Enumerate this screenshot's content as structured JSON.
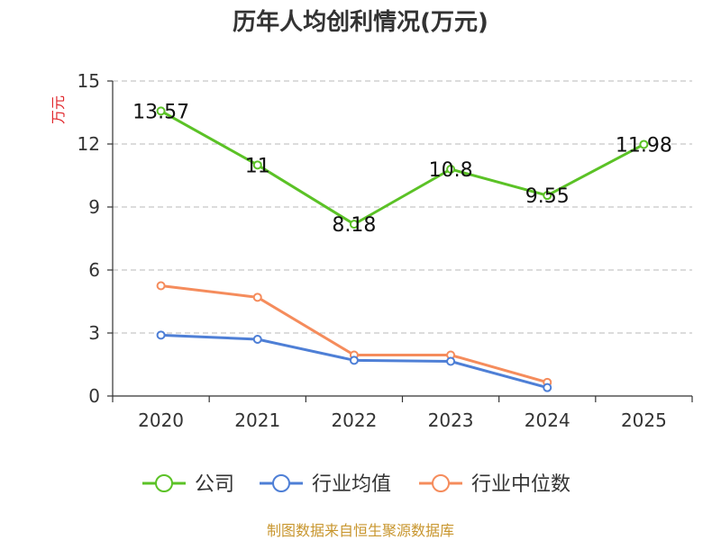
{
  "chart_data": {
    "type": "line",
    "title": "历年人均创利情况(万元)",
    "ylabel": "万元",
    "xlabel": "",
    "categories": [
      "2020",
      "2021",
      "2022",
      "2023",
      "2024",
      "2025"
    ],
    "ylim": [
      0,
      15
    ],
    "yticks": [
      "0",
      "3",
      "6",
      "9",
      "12",
      "15"
    ],
    "grid": true,
    "legend_position": "bottom",
    "series": [
      {
        "name": "公司",
        "color": "#5bc226",
        "values": [
          13.57,
          11,
          8.18,
          10.8,
          9.55,
          11.98
        ],
        "labels": [
          "13.57",
          "11",
          "8.18",
          "10.8",
          "9.55",
          "11.98"
        ]
      },
      {
        "name": "行业均值",
        "color": "#4e7fd6",
        "values": [
          2.9,
          2.7,
          1.7,
          1.65,
          0.4,
          null
        ]
      },
      {
        "name": "行业中位数",
        "color": "#f58c5c",
        "values": [
          5.25,
          4.7,
          1.95,
          1.95,
          0.65,
          null
        ]
      }
    ]
  },
  "source_note": "制图数据来自恒生聚源数据库"
}
